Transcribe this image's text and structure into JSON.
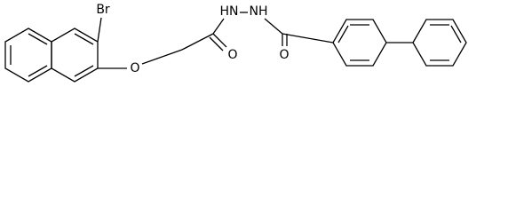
{
  "atoms": [
    {
      "label": "Br"
    },
    {
      "label": "O"
    },
    {
      "label": "O"
    },
    {
      "label": "HN"
    },
    {
      "label": "NH"
    },
    {
      "label": "O"
    }
  ]
}
